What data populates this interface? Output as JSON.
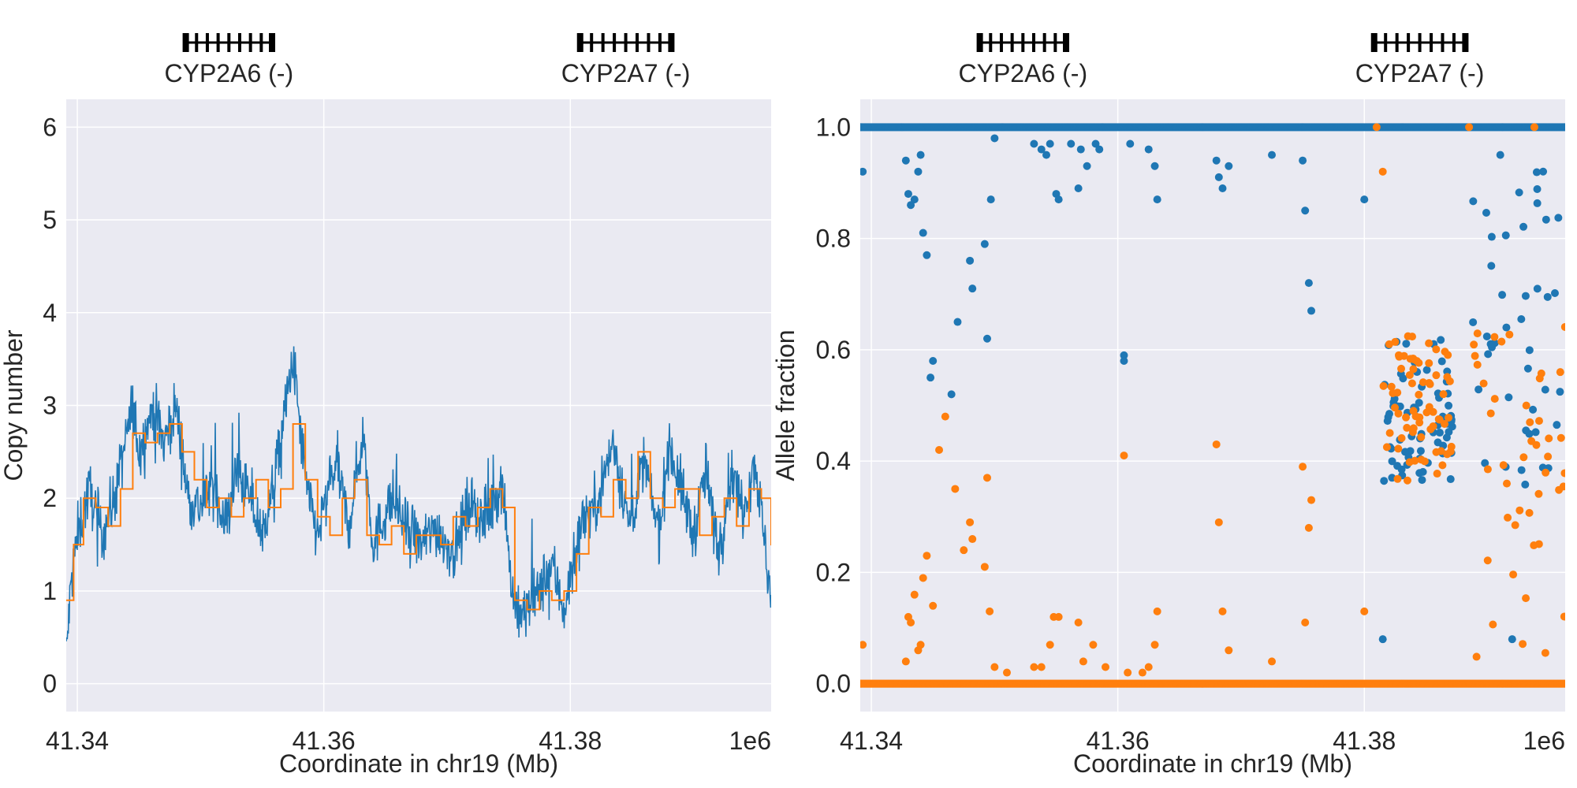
{
  "chart_data": [
    {
      "type": "line",
      "panel": "left",
      "xlabel": "Coordinate in chr19 (Mb)",
      "ylabel": "Copy number",
      "x_offset_label": "1e6",
      "xlim": [
        41.3391,
        41.3963
      ],
      "ylim": [
        -0.3,
        6.3
      ],
      "xticks": [
        41.34,
        41.36,
        41.38
      ],
      "xtick_labels": [
        "41.34",
        "41.36",
        "41.38"
      ],
      "yticks": [
        0,
        1,
        2,
        3,
        4,
        5,
        6
      ],
      "ytick_labels": [
        "0",
        "1",
        "2",
        "3",
        "4",
        "5",
        "6"
      ],
      "grid": true,
      "genes": [
        {
          "name": "CYP2A6 (-)",
          "start": 41.3488,
          "end": 41.3558
        },
        {
          "name": "CYP2A7 (-)",
          "start": 41.3808,
          "end": 41.3882
        }
      ],
      "series": [
        {
          "color": "#1f77b4",
          "x": [
            41.3391,
            41.3395,
            41.34,
            41.341,
            41.342,
            41.343,
            41.3445,
            41.345,
            41.3462,
            41.347,
            41.348,
            41.349,
            41.35,
            41.351,
            41.352,
            41.353,
            41.354,
            41.355,
            41.356,
            41.3575,
            41.3586,
            41.3595,
            41.361,
            41.362,
            41.3632,
            41.364,
            41.3655,
            41.367,
            41.368,
            41.369,
            41.3705,
            41.372,
            41.373,
            41.3745,
            41.3752,
            41.3758,
            41.3765,
            41.3775,
            41.3785,
            41.3795,
            41.38,
            41.381,
            41.382,
            41.3835,
            41.3848,
            41.386,
            41.3872,
            41.388,
            41.389,
            41.39,
            41.391,
            41.392,
            41.393,
            41.394,
            41.395,
            41.3963
          ],
          "y": [
            0.3,
            1.1,
            1.6,
            2.1,
            1.6,
            2.0,
            3.0,
            2.5,
            3.0,
            2.6,
            3.0,
            2.0,
            1.9,
            2.2,
            1.7,
            2.3,
            2.0,
            1.6,
            2.2,
            3.5,
            2.1,
            1.6,
            2.4,
            1.7,
            2.7,
            1.5,
            2.0,
            1.6,
            1.5,
            1.7,
            1.4,
            2.0,
            1.7,
            2.2,
            1.1,
            0.7,
            0.8,
            1.0,
            1.3,
            0.8,
            1.1,
            1.8,
            1.9,
            2.6,
            1.7,
            2.4,
            1.6,
            2.6,
            2.1,
            1.6,
            2.3,
            1.4,
            2.3,
            1.9,
            2.4,
            0.9
          ]
        },
        {
          "color": "#ff7f0e",
          "x": [
            41.3391,
            41.3397,
            41.3405,
            41.3415,
            41.3425,
            41.3435,
            41.3445,
            41.3455,
            41.3465,
            41.3475,
            41.3485,
            41.3495,
            41.3505,
            41.3515,
            41.3525,
            41.3535,
            41.3545,
            41.3555,
            41.3565,
            41.3575,
            41.3585,
            41.3595,
            41.3605,
            41.3615,
            41.3625,
            41.3635,
            41.3645,
            41.3655,
            41.3665,
            41.3675,
            41.3685,
            41.3695,
            41.3705,
            41.3715,
            41.3725,
            41.3735,
            41.3745,
            41.3755,
            41.3765,
            41.3775,
            41.3785,
            41.3795,
            41.3805,
            41.3815,
            41.3825,
            41.3835,
            41.3845,
            41.3855,
            41.3865,
            41.3875,
            41.3885,
            41.3895,
            41.3905,
            41.3915,
            41.3925,
            41.3935,
            41.3945,
            41.3955,
            41.3963
          ],
          "y": [
            0.9,
            1.5,
            2.0,
            1.9,
            1.7,
            2.1,
            2.7,
            2.6,
            2.7,
            2.8,
            2.5,
            2.2,
            1.9,
            2.0,
            1.8,
            2.0,
            2.2,
            1.9,
            2.1,
            2.8,
            2.2,
            1.8,
            1.6,
            2.0,
            2.2,
            1.6,
            1.5,
            1.7,
            1.4,
            1.6,
            1.6,
            1.5,
            1.8,
            1.7,
            1.9,
            2.1,
            1.9,
            0.9,
            0.8,
            1.0,
            0.9,
            1.0,
            1.4,
            1.9,
            1.8,
            2.2,
            2.0,
            2.5,
            2.0,
            1.9,
            2.1,
            2.1,
            1.6,
            1.8,
            2.0,
            1.7,
            2.1,
            2.0,
            1.5
          ]
        }
      ]
    },
    {
      "type": "scatter",
      "panel": "right",
      "xlabel": "Coordinate in chr19 (Mb)",
      "ylabel": "Allele fraction",
      "x_offset_label": "1e6",
      "xlim": [
        41.3391,
        41.3963
      ],
      "ylim": [
        -0.05,
        1.05
      ],
      "xticks": [
        41.34,
        41.36,
        41.38
      ],
      "xtick_labels": [
        "41.34",
        "41.36",
        "41.38"
      ],
      "yticks": [
        0.0,
        0.2,
        0.4,
        0.6,
        0.8,
        1.0
      ],
      "ytick_labels": [
        "0.0",
        "0.2",
        "0.4",
        "0.6",
        "0.8",
        "1.0"
      ],
      "grid": true,
      "genes": [
        {
          "name": "CYP2A6 (-)",
          "start": 41.3488,
          "end": 41.3558
        },
        {
          "name": "CYP2A7 (-)",
          "start": 41.3808,
          "end": 41.3882
        }
      ],
      "series": [
        {
          "color": "#1f77b4",
          "baseline_y": 1.0,
          "x": [
            41.3393,
            41.3428,
            41.343,
            41.3432,
            41.3435,
            41.3438,
            41.344,
            41.3442,
            41.3445,
            41.345,
            41.3448,
            41.3465,
            41.347,
            41.348,
            41.3482,
            41.3492,
            41.3494,
            41.3497,
            41.35,
            41.3532,
            41.3538,
            41.3542,
            41.3545,
            41.355,
            41.3552,
            41.3562,
            41.3568,
            41.357,
            41.3575,
            41.3582,
            41.3585,
            41.3605,
            41.361,
            41.3625,
            41.363,
            41.3632,
            41.368,
            41.3682,
            41.3685,
            41.369,
            41.3725,
            41.375,
            41.3752,
            41.3755,
            41.3757,
            41.3605,
            41.38,
            41.3815,
            41.392
          ],
          "y": [
            0.92,
            0.94,
            0.88,
            0.86,
            0.87,
            0.92,
            0.95,
            0.81,
            0.77,
            0.58,
            0.55,
            0.52,
            0.65,
            0.76,
            0.71,
            0.79,
            0.62,
            0.87,
            0.98,
            0.97,
            0.96,
            0.95,
            0.97,
            0.88,
            0.87,
            0.97,
            0.89,
            0.96,
            0.93,
            0.97,
            0.96,
            0.59,
            0.97,
            0.96,
            0.93,
            0.87,
            0.94,
            0.91,
            0.89,
            0.93,
            0.95,
            0.94,
            0.85,
            0.72,
            0.67,
            0.58,
            0.87,
            0.08,
            0.08
          ],
          "cluster": {
            "x_range": [
              41.3815,
              41.3872
            ],
            "y_range": [
              0.36,
              0.62
            ]
          },
          "cluster2": {
            "x_range": [
              41.3888,
              41.3963
            ],
            "y_range": [
              0.35,
              0.95
            ]
          }
        },
        {
          "color": "#ff7f0e",
          "baseline_y": 0.0,
          "x": [
            41.3393,
            41.3428,
            41.343,
            41.3432,
            41.3435,
            41.3438,
            41.344,
            41.3442,
            41.3445,
            41.345,
            41.3455,
            41.346,
            41.3468,
            41.3475,
            41.348,
            41.3482,
            41.3492,
            41.3494,
            41.3496,
            41.35,
            41.351,
            41.3532,
            41.3538,
            41.3545,
            41.3548,
            41.3552,
            41.3568,
            41.3572,
            41.358,
            41.359,
            41.3605,
            41.3608,
            41.362,
            41.3625,
            41.363,
            41.3632,
            41.368,
            41.3682,
            41.3685,
            41.369,
            41.3725,
            41.375,
            41.3752,
            41.3755,
            41.3757,
            41.38,
            41.3815,
            41.381,
            41.3885,
            41.3938
          ],
          "y": [
            0.07,
            0.04,
            0.12,
            0.11,
            0.16,
            0.06,
            0.07,
            0.19,
            0.23,
            0.14,
            0.42,
            0.48,
            0.35,
            0.24,
            0.29,
            0.26,
            0.21,
            0.37,
            0.13,
            0.03,
            0.02,
            0.03,
            0.03,
            0.07,
            0.12,
            0.12,
            0.11,
            0.04,
            0.07,
            0.03,
            0.41,
            0.02,
            0.02,
            0.03,
            0.07,
            0.13,
            0.43,
            0.29,
            0.13,
            0.06,
            0.04,
            0.39,
            0.11,
            0.28,
            0.33,
            0.13,
            0.92,
            1.0,
            1.0,
            1.0
          ],
          "cluster": {
            "x_range": [
              41.3815,
              41.3872
            ],
            "y_range": [
              0.36,
              0.64
            ]
          },
          "cluster2": {
            "x_range": [
              41.3888,
              41.3963
            ],
            "y_range": [
              0.03,
              0.65
            ]
          }
        }
      ]
    }
  ]
}
